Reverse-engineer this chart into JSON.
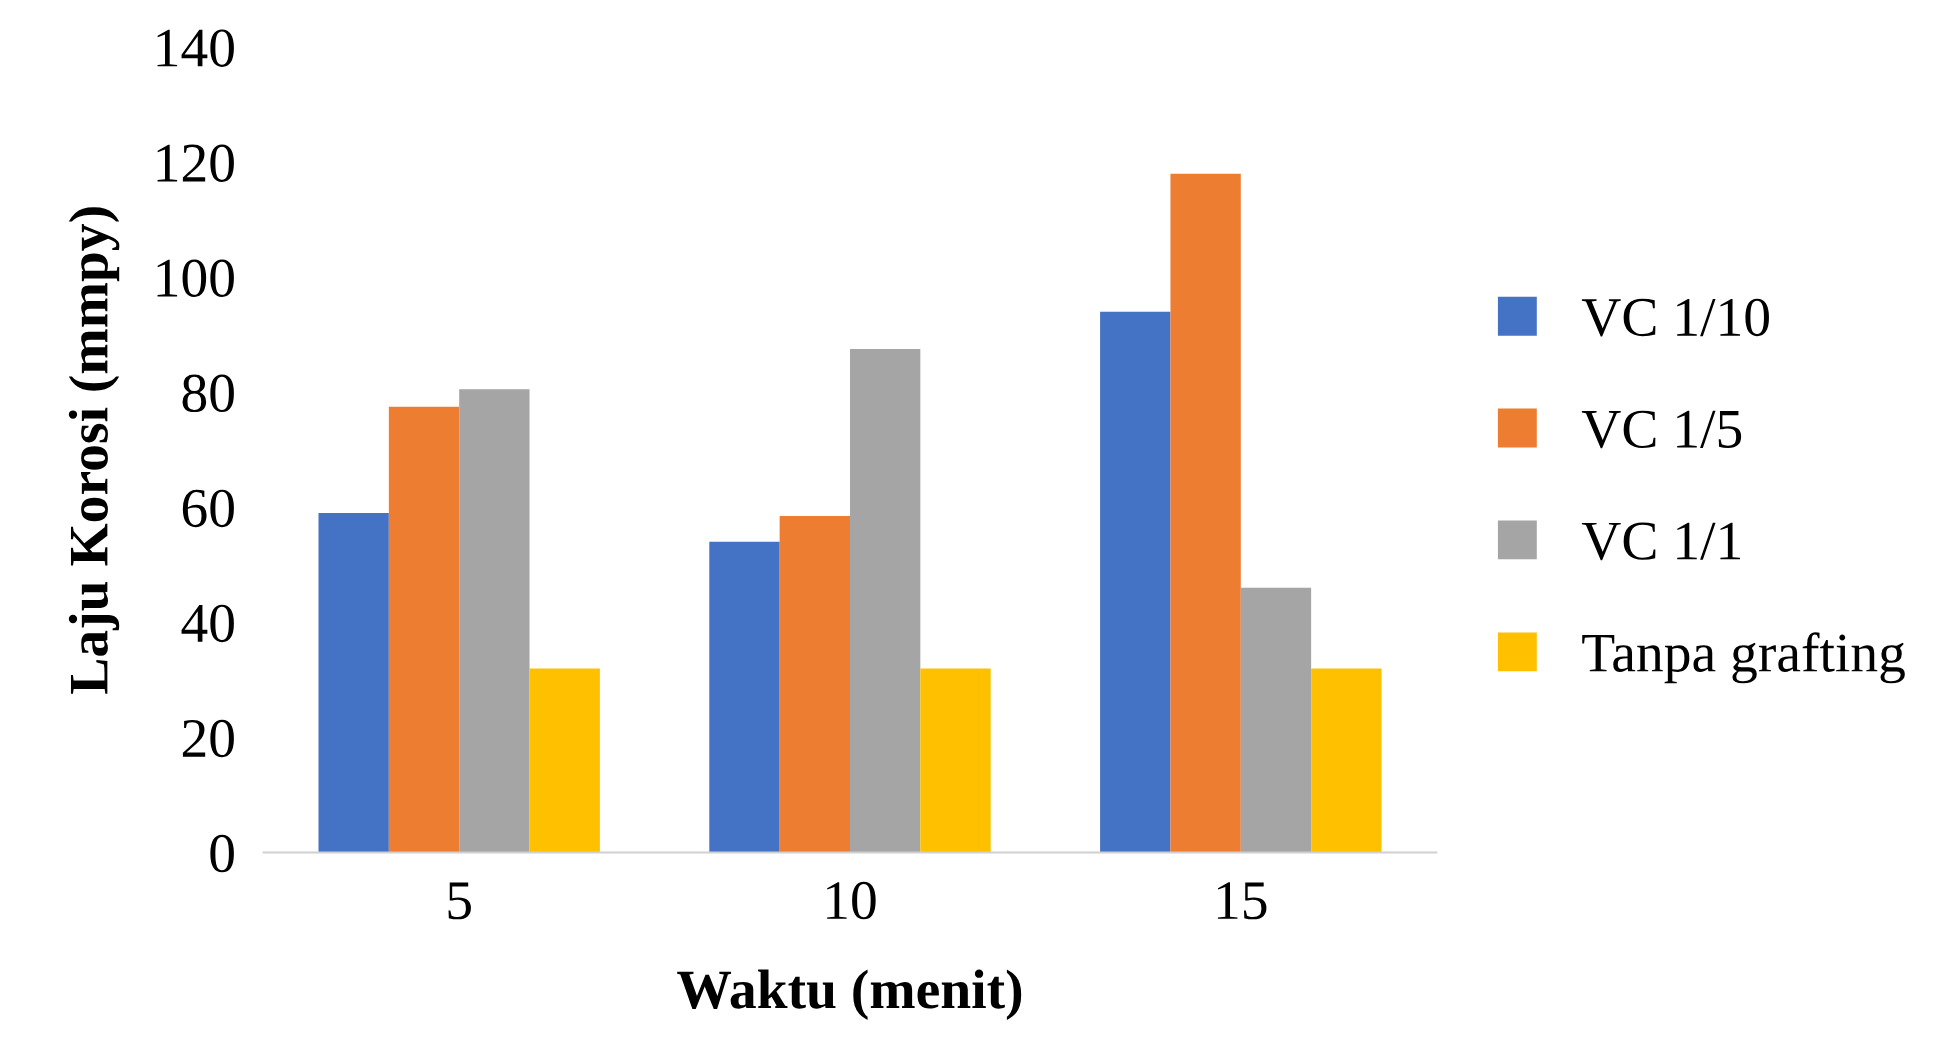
{
  "chart_data": {
    "type": "bar",
    "xlabel": "Waktu (menit)",
    "ylabel": "Laju Korosi (mmpy)",
    "categories": [
      "5",
      "10",
      "15"
    ],
    "series": [
      {
        "name": "VC 1/10",
        "color": "#4472c4",
        "values": [
          59,
          54,
          94
        ]
      },
      {
        "name": "VC 1/5",
        "color": "#ed7d31",
        "values": [
          77.5,
          58.5,
          118
        ]
      },
      {
        "name": "VC 1/1",
        "color": "#a5a5a5",
        "values": [
          80.5,
          87.5,
          46
        ]
      },
      {
        "name": "Tanpa grafting",
        "color": "#ffc000",
        "values": [
          32,
          32,
          32
        ]
      }
    ],
    "ylim": [
      0,
      140
    ],
    "yticks": [
      0,
      20,
      40,
      60,
      80,
      100,
      120,
      140
    ],
    "grid": false,
    "legend": "right"
  }
}
